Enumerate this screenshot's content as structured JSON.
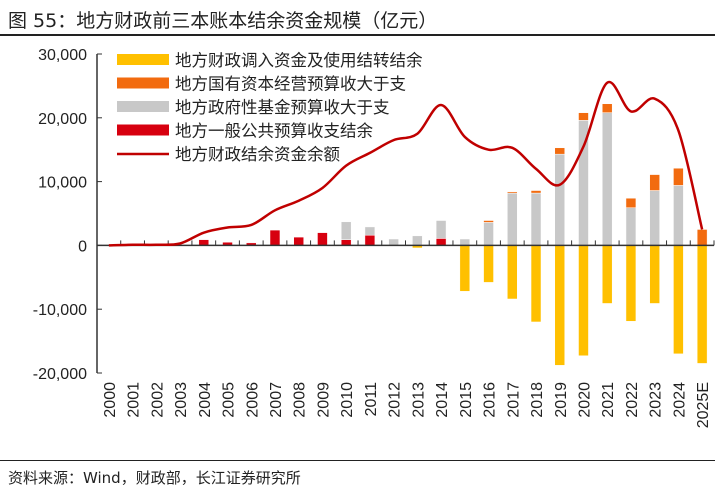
{
  "title": "图 55：地方财政前三本账本结余资金规模（亿元）",
  "source": "资料来源：Wind，财政部，长江证券研究所",
  "chart_data": {
    "type": "bar",
    "stacked": true,
    "title": "",
    "xlabel": "",
    "ylabel": "",
    "ylim": [
      -20000,
      30000
    ],
    "yticks": [
      -20000,
      -10000,
      0,
      10000,
      20000,
      30000
    ],
    "ytick_labels": [
      "-20,000",
      "-10,000",
      "0",
      "10,000",
      "20,000",
      "30,000"
    ],
    "legend_position": "top-left",
    "categories": [
      "2000",
      "2001",
      "2002",
      "2003",
      "2004",
      "2005",
      "2006",
      "2007",
      "2008",
      "2009",
      "2010",
      "2011",
      "2012",
      "2013",
      "2014",
      "2015",
      "2016",
      "2017",
      "2018",
      "2019",
      "2020",
      "2021",
      "2022",
      "2023",
      "2024",
      "2025E"
    ],
    "series": [
      {
        "name": "地方财政调入资金及使用结转结余",
        "kind": "bar",
        "color": "#FFC000",
        "values": [
          0,
          0,
          0,
          0,
          0,
          0,
          0,
          0,
          0,
          0,
          0,
          0,
          0,
          -400,
          0,
          -7200,
          -5800,
          -8400,
          -12000,
          -18800,
          -17300,
          -9100,
          -11900,
          -9100,
          -17000,
          -18500
        ]
      },
      {
        "name": "地方国有资本经营预算收大于支",
        "kind": "bar",
        "color": "#F26B0F",
        "values": [
          0,
          0,
          0,
          0,
          0,
          0,
          0,
          0,
          0,
          0,
          0,
          0,
          0,
          0,
          0,
          0,
          300,
          200,
          400,
          1000,
          1200,
          1400,
          1500,
          2500,
          2700,
          2500
        ]
      },
      {
        "name": "地方政府性基金预算收大于支",
        "kind": "bar",
        "color": "#C8C8C8",
        "values": [
          0,
          0,
          0,
          0,
          0,
          0,
          0,
          0,
          0,
          0,
          2800,
          1300,
          1000,
          1500,
          2800,
          1000,
          3600,
          8200,
          8200,
          14300,
          19600,
          20800,
          5900,
          8600,
          9400,
          0
        ]
      },
      {
        "name": "地方一般公共预算收支结余",
        "kind": "bar",
        "color": "#D7000F",
        "values": [
          0,
          0,
          0,
          0,
          900,
          500,
          400,
          2400,
          1300,
          2000,
          900,
          1600,
          0,
          0,
          1100,
          0,
          0,
          0,
          0,
          0,
          0,
          0,
          0,
          0,
          0,
          0
        ]
      },
      {
        "name": "地方财政结余资金余额",
        "kind": "line",
        "color": "#C00000",
        "values": [
          0,
          100,
          100,
          300,
          2000,
          2800,
          3200,
          5500,
          7000,
          9000,
          12500,
          14500,
          16500,
          17500,
          22000,
          17000,
          15000,
          15300,
          12000,
          9500,
          15500,
          25500,
          21000,
          23000,
          18000,
          2500
        ]
      }
    ]
  }
}
